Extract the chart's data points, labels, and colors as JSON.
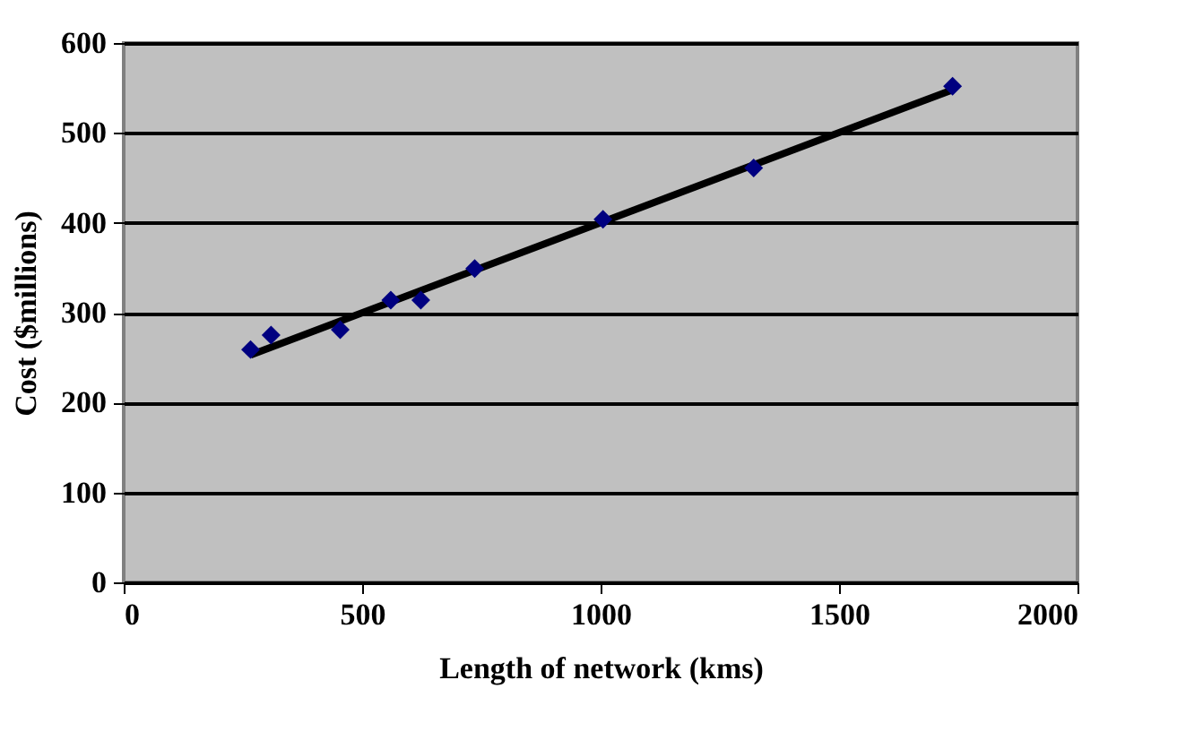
{
  "chart_data": {
    "type": "scatter",
    "xlabel": "Length of network (kms)",
    "ylabel": "Cost ($millions)",
    "xlim": [
      0,
      2000
    ],
    "xticks": [
      0,
      500,
      1000,
      1500,
      2000
    ],
    "ylim": [
      0,
      600
    ],
    "yticks": [
      0,
      100,
      200,
      300,
      400,
      500,
      600
    ],
    "grid": "y",
    "series": [
      {
        "color": "#000080",
        "marker": "diamond",
        "x": [
          266,
          309,
          454,
          560,
          623,
          736,
          1005,
          1321,
          1738
        ],
        "values": [
          259,
          275,
          281,
          314,
          314,
          349,
          404,
          461,
          552
        ]
      },
      {
        "type": "line",
        "color": "#000000",
        "x": [
          266,
          1738
        ],
        "values": [
          253,
          548
        ]
      }
    ]
  }
}
